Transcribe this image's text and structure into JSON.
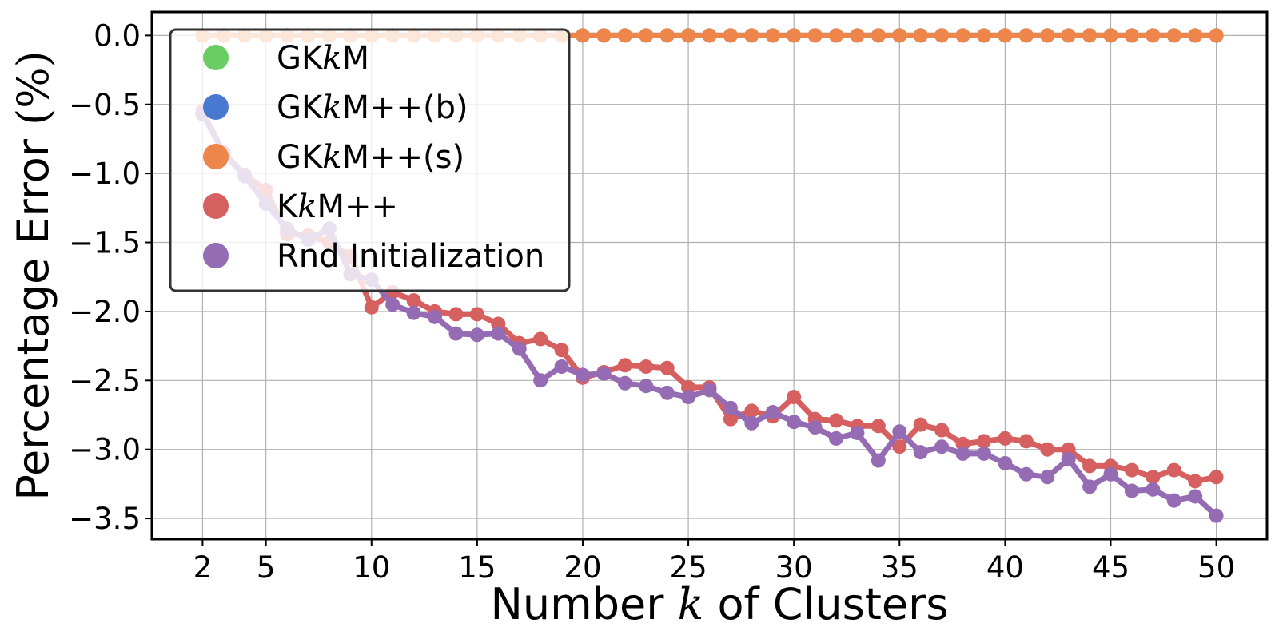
{
  "chart_data": {
    "type": "line",
    "xlabel_parts": [
      "Number ",
      "k",
      " of Clusters"
    ],
    "ylabel_parts": [
      "Percentage Error ",
      "(%)"
    ],
    "xlim": [
      -0.4,
      52.4
    ],
    "ylim": [
      -3.65,
      0.17
    ],
    "xticks": [
      2,
      5,
      10,
      15,
      20,
      25,
      30,
      35,
      40,
      45,
      50
    ],
    "yticks": [
      0.0,
      -0.5,
      -1.0,
      -1.5,
      -2.0,
      -2.5,
      -3.0,
      -3.5
    ],
    "ytick_labels": [
      "0.0",
      "−0.5",
      "−1.0",
      "−1.5",
      "−2.0",
      "−2.5",
      "−3.0",
      "−3.5"
    ],
    "grid": true,
    "legend_position": "top-left",
    "x": [
      2,
      3,
      4,
      5,
      6,
      7,
      8,
      9,
      10,
      11,
      12,
      13,
      14,
      15,
      16,
      17,
      18,
      19,
      20,
      21,
      22,
      23,
      24,
      25,
      26,
      27,
      28,
      29,
      30,
      31,
      32,
      33,
      34,
      35,
      36,
      37,
      38,
      39,
      40,
      41,
      42,
      43,
      44,
      45,
      46,
      47,
      48,
      49,
      50
    ],
    "series": [
      {
        "key": "gkkm",
        "name_parts": [
          "GK",
          "k",
          "M"
        ],
        "color": "#6acc64",
        "values": [
          0,
          0,
          0,
          0,
          0,
          0,
          0,
          0,
          0,
          0,
          0,
          0,
          0,
          0,
          0,
          0,
          0,
          0,
          0,
          0,
          0,
          0,
          0,
          0,
          0,
          0,
          0,
          0,
          0,
          0,
          0,
          0,
          0,
          0,
          0,
          0,
          0,
          0,
          0,
          0,
          0,
          0,
          0,
          0,
          0,
          0,
          0,
          0,
          0
        ]
      },
      {
        "key": "gkkmpp_b",
        "name_parts": [
          "GK",
          "k",
          "M++(b)"
        ],
        "color": "#4878d0",
        "values": [
          0,
          0,
          0,
          0,
          0,
          0,
          0,
          0,
          0,
          0,
          0,
          0,
          0,
          0,
          0,
          0,
          0,
          0,
          0,
          0,
          0,
          0,
          0,
          0,
          0,
          0,
          0,
          0,
          0,
          0,
          0,
          0,
          0,
          0,
          0,
          0,
          0,
          0,
          0,
          0,
          0,
          0,
          0,
          0,
          0,
          0,
          0,
          0,
          0
        ]
      },
      {
        "key": "gkkmpp_s",
        "name_parts": [
          "GK",
          "k",
          "M++(s)"
        ],
        "color": "#ee854a",
        "values": [
          0,
          0,
          0,
          0,
          0,
          0,
          0,
          0,
          0,
          0,
          0,
          0,
          0,
          0,
          0,
          0,
          0,
          0,
          0,
          0,
          0,
          0,
          0,
          0,
          0,
          0,
          0,
          0,
          0,
          0,
          0,
          0,
          0,
          0,
          0,
          0,
          0,
          0,
          0,
          0,
          0,
          0,
          0,
          0,
          0,
          0,
          0,
          0,
          0
        ]
      },
      {
        "key": "kkmpp",
        "name_parts": [
          "K",
          "k",
          "M++"
        ],
        "color": "#d65f5f",
        "values": [
          -0.55,
          -0.85,
          -1.01,
          -1.12,
          -1.44,
          -1.45,
          -1.5,
          -1.6,
          -1.97,
          -1.86,
          -1.92,
          -2.0,
          -2.02,
          -2.02,
          -2.09,
          -2.23,
          -2.2,
          -2.28,
          -2.48,
          -2.44,
          -2.39,
          -2.4,
          -2.41,
          -2.55,
          -2.55,
          -2.78,
          -2.72,
          -2.76,
          -2.62,
          -2.78,
          -2.79,
          -2.83,
          -2.83,
          -2.98,
          -2.82,
          -2.86,
          -2.96,
          -2.94,
          -2.92,
          -2.94,
          -3.0,
          -3.0,
          -3.12,
          -3.12,
          -3.15,
          -3.2,
          -3.15,
          -3.23,
          -3.2
        ]
      },
      {
        "key": "rnd",
        "name_parts": [
          "Rnd Initialization",
          "",
          ""
        ],
        "color": "#956cb4",
        "values": [
          -0.57,
          -0.85,
          -1.02,
          -1.22,
          -1.4,
          -1.48,
          -1.4,
          -1.73,
          -1.77,
          -1.95,
          -2.01,
          -2.04,
          -2.16,
          -2.17,
          -2.16,
          -2.27,
          -2.5,
          -2.4,
          -2.46,
          -2.45,
          -2.52,
          -2.54,
          -2.59,
          -2.62,
          -2.57,
          -2.7,
          -2.81,
          -2.73,
          -2.8,
          -2.84,
          -2.92,
          -2.88,
          -3.08,
          -2.87,
          -3.02,
          -2.98,
          -3.03,
          -3.03,
          -3.1,
          -3.18,
          -3.2,
          -3.07,
          -3.27,
          -3.18,
          -3.3,
          -3.29,
          -3.37,
          -3.34,
          -3.48
        ]
      }
    ]
  }
}
